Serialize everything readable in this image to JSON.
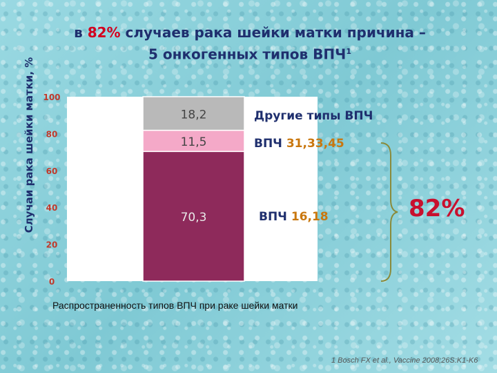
{
  "slide": {
    "title_line1_prefix": "в ",
    "title_line1_pct": "82%",
    "title_line1_suffix": " случаев рака шейки матки причина –",
    "title_line2": "5 онкогенных типов ВПЧ",
    "title_sup": "1",
    "ylabel": "Случаи рака шейки матки, %",
    "labels": {
      "other": "Другие типы ВПЧ",
      "hpv_a_prefix": "ВПЧ ",
      "hpv_a_types": "31,33,45",
      "hpv_b_prefix": "ВПЧ ",
      "hpv_b_types": "16,18"
    },
    "brace_pct": "82%",
    "caption": "Распространенность типов ВПЧ при раке шейки матки",
    "source": "1 Bosch FX et al., Vaccine 2008;26S:K1-K6"
  },
  "chart_data": {
    "type": "bar",
    "stacked": true,
    "categories": [
      ""
    ],
    "series": [
      {
        "name": "ВПЧ 16,18",
        "values": [
          70.3
        ],
        "label": "70,3",
        "color": "#8e2a5b"
      },
      {
        "name": "ВПЧ 31,33,45",
        "values": [
          11.5
        ],
        "label": "11,5",
        "color": "#f4a9c8"
      },
      {
        "name": "Другие типы ВПЧ",
        "values": [
          18.2
        ],
        "label": "18,2",
        "color": "#b9b9b9"
      }
    ],
    "ylim": [
      0,
      100
    ],
    "yticks": [
      "0",
      "20",
      "40",
      "60",
      "80",
      "100"
    ],
    "tick_values": [
      0,
      20,
      40,
      60,
      80,
      100
    ],
    "grid": false,
    "colors": {
      "plot_bg": "#ffffff",
      "tick": "#c0392b",
      "data_label": "#444444"
    }
  }
}
